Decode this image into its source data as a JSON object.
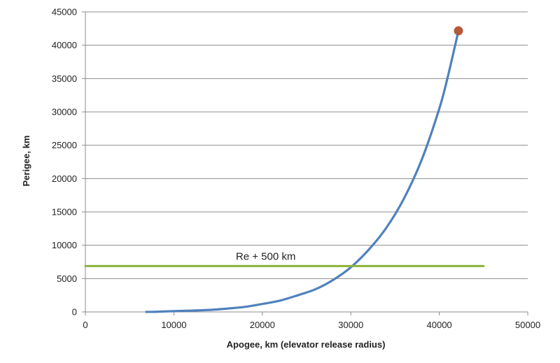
{
  "chart_data": {
    "type": "line",
    "title": "",
    "xlabel": "Apogee, km (elevator release radius)",
    "ylabel": "Perigee, km",
    "xlim": [
      0,
      50000
    ],
    "ylim": [
      0,
      45000
    ],
    "x_ticks": [
      0,
      10000,
      20000,
      30000,
      40000,
      50000
    ],
    "y_ticks": [
      0,
      5000,
      10000,
      15000,
      20000,
      25000,
      30000,
      35000,
      40000,
      45000
    ],
    "grid": "horizontal",
    "legend": "none",
    "series": [
      {
        "color": "#4f81bd",
        "x": [
          6878,
          8000,
          10000,
          12000,
          14000,
          16000,
          18000,
          20000,
          22000,
          24000,
          26000,
          28000,
          30000,
          32000,
          34000,
          36000,
          38000,
          40000,
          41000,
          42164
        ],
        "y": [
          0,
          30,
          120,
          200,
          300,
          500,
          750,
          1200,
          1700,
          2500,
          3400,
          4800,
          6700,
          9300,
          12600,
          17000,
          22800,
          30500,
          35500,
          42164
        ]
      },
      {
        "color": "#8db33a",
        "x": [
          0,
          45000
        ],
        "y": [
          6878,
          6878
        ]
      }
    ],
    "markers": [
      {
        "x": 42164,
        "y": 42164,
        "color": "#b35a3a"
      }
    ],
    "annotations": [
      {
        "text": "Re + 500  km",
        "x": 17000,
        "y": 7800
      }
    ]
  }
}
